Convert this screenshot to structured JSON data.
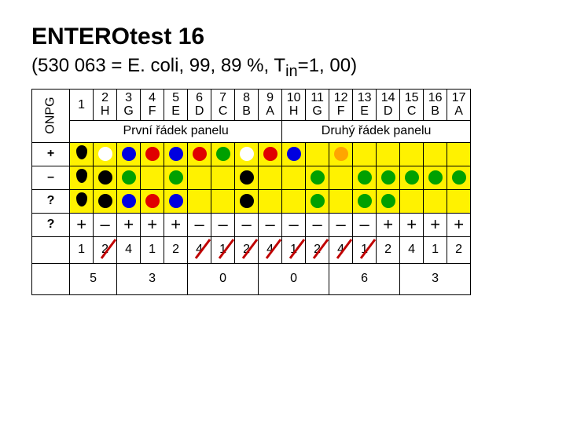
{
  "title": "ENTEROtest 16",
  "subtitle_pre": "(530 063 = E. coli, 99, 89 %, T",
  "subtitle_sub": "in",
  "subtitle_post": "=1, 00)",
  "vertical_label": "ONPG",
  "header_nums": [
    "1",
    "2",
    "3",
    "4",
    "5",
    "6",
    "7",
    "8",
    "9",
    "10",
    "11",
    "12",
    "13",
    "14",
    "15",
    "16",
    "17"
  ],
  "header_letters": [
    "",
    "H",
    "G",
    "F",
    "E",
    "D",
    "C",
    "B",
    "A",
    "H",
    "G",
    "F",
    "E",
    "D",
    "C",
    "B",
    "A"
  ],
  "section_left": "První řádek panelu",
  "section_right": "Druhý řádek panelu",
  "row_labels": [
    "+",
    "–",
    "?",
    "?"
  ],
  "rows": {
    "plus": [
      "drop",
      "white",
      "blue",
      "red",
      "blue",
      "red",
      "green",
      "white",
      "red",
      "blue",
      "yellow",
      "orange",
      "yellow",
      "yellow",
      "yellow",
      "yellow",
      "yellow"
    ],
    "minus": [
      "drop",
      "black",
      "green",
      "yellow",
      "green",
      "yellow",
      "yellow",
      "black",
      "yellow",
      "yellow",
      "green",
      "yellow",
      "green",
      "green",
      "green",
      "green",
      "green"
    ],
    "qcolor": [
      "drop",
      "black",
      "blue",
      "red",
      "blue",
      "yellow",
      "yellow",
      "black",
      "yellow",
      "yellow",
      "green",
      "yellow",
      "green",
      "green",
      "yellow",
      "yellow",
      "yellow"
    ],
    "qsign": [
      "+",
      "–",
      "+",
      "+",
      "+",
      "–",
      "–",
      "–",
      "–",
      "–",
      "–",
      "–",
      "–",
      "+",
      "+",
      "+",
      "+"
    ]
  },
  "digits": [
    "1",
    "2",
    "4",
    "1",
    "2",
    "4",
    "1",
    "2",
    "4",
    "1",
    "2",
    "4",
    "1",
    "2",
    "4",
    "1",
    "2"
  ],
  "digit_strike": [
    false,
    true,
    false,
    false,
    false,
    true,
    true,
    true,
    true,
    true,
    true,
    true,
    true,
    false,
    false,
    false,
    false
  ],
  "sums": [
    "5",
    "3",
    "0",
    "0",
    "6",
    "3"
  ],
  "colors": {
    "red": "#e00000",
    "blue": "#0000e0",
    "green": "#00a000",
    "black": "#000000",
    "yellow": "#fff200",
    "white": "#ffffff",
    "orange": "#ffa500",
    "bg_yellow": "#fff200",
    "strike": "#c00000"
  }
}
